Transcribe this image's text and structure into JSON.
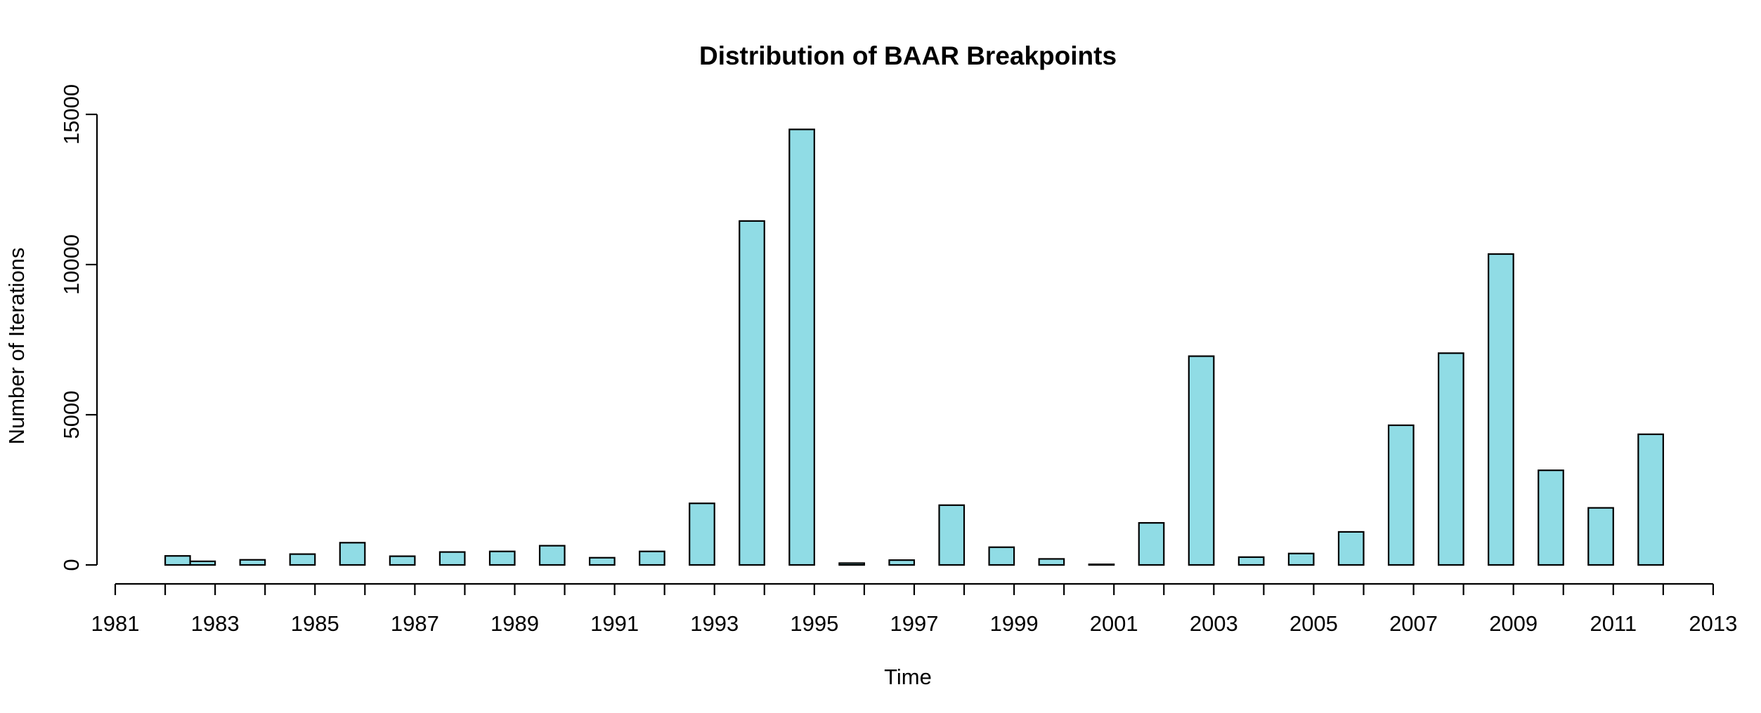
{
  "chart_data": {
    "type": "bar",
    "title": "Distribution of BAAR Breakpoints",
    "xlabel": "Time",
    "ylabel": "Number of Iterations",
    "bar_color": "#90DCE5",
    "grid": false,
    "xlim": [
      1981,
      2013
    ],
    "ylim": [
      0,
      15000
    ],
    "x_ticks": [
      1981,
      1983,
      1985,
      1987,
      1989,
      1991,
      1993,
      1995,
      1997,
      1999,
      2001,
      2003,
      2005,
      2007,
      2009,
      2011,
      2013
    ],
    "y_ticks": [
      0,
      5000,
      10000,
      15000
    ],
    "bars": [
      {
        "x": 1982.25,
        "value": 300
      },
      {
        "x": 1982.75,
        "value": 120
      },
      {
        "x": 1983.75,
        "value": 170
      },
      {
        "x": 1984.75,
        "value": 360
      },
      {
        "x": 1985.75,
        "value": 740
      },
      {
        "x": 1986.75,
        "value": 290
      },
      {
        "x": 1987.75,
        "value": 430
      },
      {
        "x": 1988.75,
        "value": 450
      },
      {
        "x": 1989.75,
        "value": 640
      },
      {
        "x": 1990.75,
        "value": 240
      },
      {
        "x": 1991.75,
        "value": 450
      },
      {
        "x": 1992.75,
        "value": 2050
      },
      {
        "x": 1993.75,
        "value": 11450
      },
      {
        "x": 1994.75,
        "value": 14500
      },
      {
        "x": 1995.75,
        "value": 60
      },
      {
        "x": 1996.75,
        "value": 160
      },
      {
        "x": 1997.75,
        "value": 1990
      },
      {
        "x": 1998.75,
        "value": 590
      },
      {
        "x": 1999.75,
        "value": 200
      },
      {
        "x": 2000.75,
        "value": 20
      },
      {
        "x": 2001.75,
        "value": 1400
      },
      {
        "x": 2002.75,
        "value": 6950
      },
      {
        "x": 2003.75,
        "value": 260
      },
      {
        "x": 2004.75,
        "value": 380
      },
      {
        "x": 2005.75,
        "value": 1100
      },
      {
        "x": 2006.75,
        "value": 4650
      },
      {
        "x": 2007.75,
        "value": 7050
      },
      {
        "x": 2008.75,
        "value": 10350
      },
      {
        "x": 2009.75,
        "value": 3150
      },
      {
        "x": 2010.75,
        "value": 1900
      },
      {
        "x": 2011.75,
        "value": 4350
      }
    ]
  }
}
